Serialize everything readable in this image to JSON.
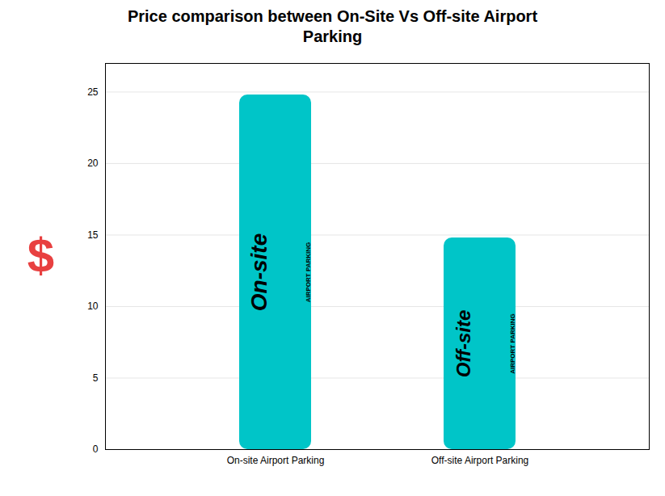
{
  "chart_data": {
    "type": "bar",
    "title": "Price comparison between On-Site Vs Off-site Airport\nParking",
    "categories": [
      "On-site Airport Parking",
      "Off-site Airport Parking"
    ],
    "values": [
      24.8,
      14.8
    ],
    "color": "#00C5C8",
    "bar_labels": [
      "On-site",
      "Off-site"
    ],
    "bar_sublabels": [
      "AIRPORT PARKING",
      "AIRPORT PARKING"
    ],
    "annotations": [
      {
        "text": "$",
        "color": "#E84040"
      }
    ],
    "ylim": [
      0,
      27
    ],
    "yticks": [
      0,
      5,
      10,
      15,
      20,
      25
    ],
    "grid": true
  }
}
